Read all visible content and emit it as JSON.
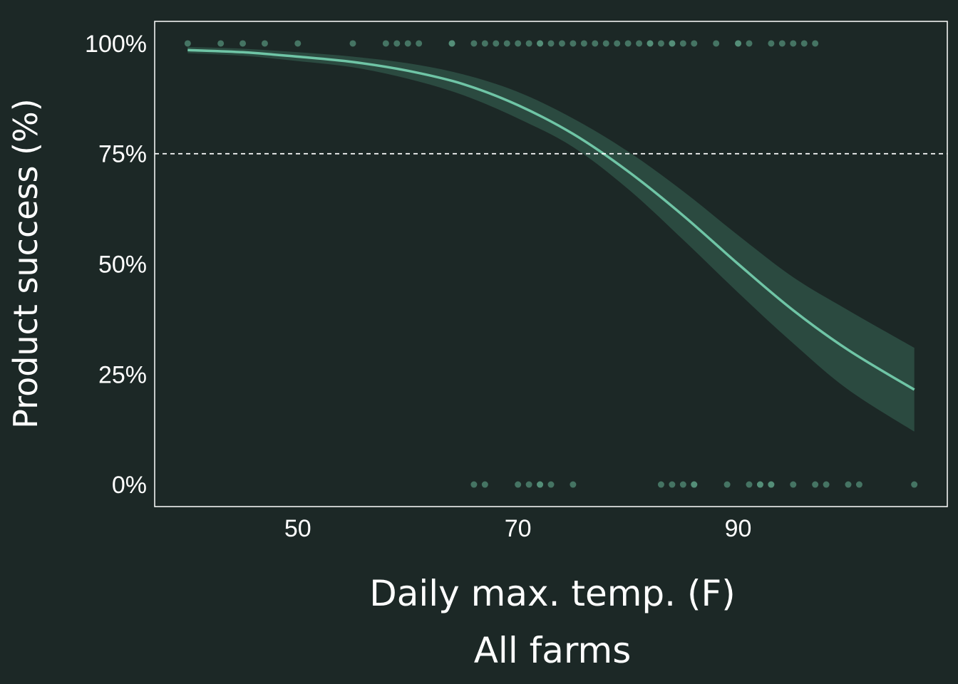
{
  "chart_data": {
    "type": "line",
    "xlabel": "Daily max. temp. (F)",
    "subtitle": "All farms",
    "ylabel": "Product success (%)",
    "xlim": [
      37,
      109
    ],
    "ylim": [
      -5,
      105
    ],
    "x_ticks": [
      50,
      70,
      90
    ],
    "y_ticks": [
      0,
      25,
      50,
      75,
      100
    ],
    "y_tick_labels": [
      "0%",
      "25%",
      "50%",
      "75%",
      "100%"
    ],
    "reference_line": {
      "y": 75,
      "style": "dashed"
    },
    "curve": {
      "x": [
        40,
        45,
        50,
        55,
        60,
        65,
        70,
        75,
        80,
        85,
        90,
        95,
        100,
        106
      ],
      "y": [
        98.5,
        98,
        97,
        95.8,
        93.8,
        90.8,
        86,
        79.5,
        71,
        61,
        50,
        39.5,
        30.5,
        21.5
      ],
      "lower": [
        97.8,
        97.2,
        96,
        94.6,
        92,
        88.3,
        83,
        76.5,
        67,
        55.5,
        43.5,
        32,
        21.5,
        12
      ],
      "upper": [
        99.2,
        98.8,
        98,
        97,
        95.5,
        93,
        89,
        83,
        75.5,
        66.5,
        56.5,
        47,
        39.5,
        31
      ]
    },
    "points_success": [
      40,
      43,
      45,
      47,
      50,
      55,
      58,
      59,
      60,
      61,
      64,
      64,
      66,
      67,
      68,
      69,
      70,
      71,
      72,
      72,
      73,
      74,
      75,
      76,
      77,
      78,
      79,
      80,
      81,
      82,
      82,
      83,
      84,
      84,
      85,
      86,
      88,
      90,
      90,
      91,
      93,
      94,
      95,
      96,
      97
    ],
    "points_failure": [
      66,
      67,
      70,
      71,
      72,
      72,
      73,
      75,
      83,
      84,
      85,
      86,
      86,
      89,
      91,
      92,
      92,
      93,
      93,
      95,
      97,
      98,
      100,
      101,
      106
    ],
    "colors": {
      "background": "#1c2826",
      "line": "#6fc5a6",
      "band": "#2b4a40",
      "points": "#5c9c84",
      "axis": "#ffffff"
    }
  }
}
